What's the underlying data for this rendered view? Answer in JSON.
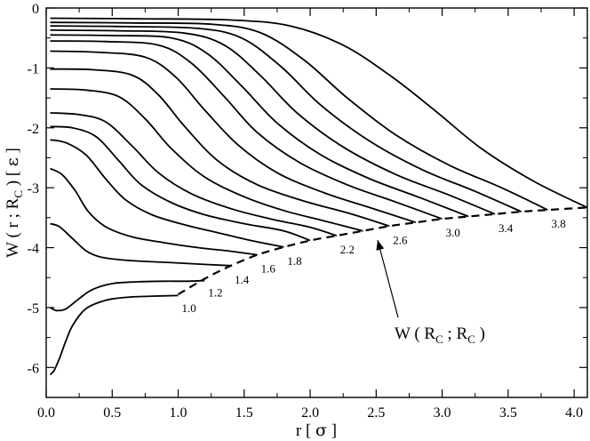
{
  "chart_data": {
    "type": "line",
    "xlabel": {
      "prefix": "r [ ",
      "symbol": "σ",
      "suffix": " ]"
    },
    "ylabel": {
      "p1": "W ( r ; R",
      "sub": "C",
      "p2": " ) [ ",
      "symbol": "ε",
      "p3": " ]"
    },
    "xlim": [
      0.0,
      4.1
    ],
    "ylim": [
      -6.5,
      0.0
    ],
    "xticks": [
      "0.0",
      "0.5",
      "1.0",
      "1.5",
      "2.0",
      "2.5",
      "3.0",
      "3.5",
      "4.0"
    ],
    "yticks": [
      "0",
      "-1",
      "-2",
      "-3",
      "-4",
      "-5",
      "-6"
    ],
    "grid": false,
    "curve_labels": [
      "1.0",
      "1.2",
      "1.4",
      "1.6",
      "1.8",
      "2.2",
      "2.6",
      "3.0",
      "3.4",
      "3.8"
    ],
    "envelope_label": {
      "p1": "W ( R",
      "sub1": "C",
      "p2": " ; R",
      "sub2": "C",
      "p3": " )"
    },
    "envelope": {
      "name": "W(R_C;R_C)",
      "style": "dashed",
      "points": [
        [
          1.0,
          -4.78
        ],
        [
          1.2,
          -4.52
        ],
        [
          1.4,
          -4.3
        ],
        [
          1.6,
          -4.12
        ],
        [
          1.8,
          -3.99
        ],
        [
          2.0,
          -3.88
        ],
        [
          2.2,
          -3.8
        ],
        [
          2.4,
          -3.72
        ],
        [
          2.6,
          -3.64
        ],
        [
          2.8,
          -3.58
        ],
        [
          3.0,
          -3.52
        ],
        [
          3.2,
          -3.48
        ],
        [
          3.4,
          -3.44
        ],
        [
          3.6,
          -3.4
        ],
        [
          3.8,
          -3.37
        ],
        [
          4.1,
          -3.33
        ]
      ]
    },
    "series": [
      {
        "points": [
          [
            0.03,
            -6.12
          ],
          [
            0.06,
            -6.05
          ],
          [
            0.1,
            -5.85
          ],
          [
            0.15,
            -5.55
          ],
          [
            0.2,
            -5.3
          ],
          [
            0.3,
            -5.02
          ],
          [
            0.45,
            -4.88
          ],
          [
            0.6,
            -4.83
          ],
          [
            0.8,
            -4.81
          ],
          [
            1.0,
            -4.8
          ]
        ]
      },
      {
        "points": [
          [
            0.03,
            -5.0
          ],
          [
            0.08,
            -5.05
          ],
          [
            0.15,
            -5.02
          ],
          [
            0.25,
            -4.85
          ],
          [
            0.35,
            -4.7
          ],
          [
            0.5,
            -4.6
          ],
          [
            0.7,
            -4.57
          ],
          [
            0.9,
            -4.56
          ],
          [
            1.05,
            -4.56
          ],
          [
            1.2,
            -4.55
          ]
        ]
      },
      {
        "points": [
          [
            0.03,
            -3.6
          ],
          [
            0.1,
            -3.65
          ],
          [
            0.2,
            -3.85
          ],
          [
            0.3,
            -4.05
          ],
          [
            0.4,
            -4.15
          ],
          [
            0.55,
            -4.2
          ],
          [
            0.75,
            -4.23
          ],
          [
            0.95,
            -4.25
          ],
          [
            1.2,
            -4.28
          ],
          [
            1.4,
            -4.3
          ]
        ]
      },
      {
        "points": [
          [
            0.03,
            -2.68
          ],
          [
            0.12,
            -2.78
          ],
          [
            0.22,
            -3.05
          ],
          [
            0.32,
            -3.4
          ],
          [
            0.45,
            -3.65
          ],
          [
            0.65,
            -3.82
          ],
          [
            0.9,
            -3.92
          ],
          [
            1.15,
            -4.0
          ],
          [
            1.4,
            -4.06
          ],
          [
            1.6,
            -4.12
          ]
        ]
      },
      {
        "points": [
          [
            0.03,
            -2.2
          ],
          [
            0.15,
            -2.25
          ],
          [
            0.3,
            -2.45
          ],
          [
            0.45,
            -2.85
          ],
          [
            0.6,
            -3.2
          ],
          [
            0.8,
            -3.45
          ],
          [
            1.05,
            -3.62
          ],
          [
            1.3,
            -3.75
          ],
          [
            1.55,
            -3.88
          ],
          [
            1.8,
            -3.99
          ]
        ]
      },
      {
        "points": [
          [
            0.03,
            -1.98
          ],
          [
            0.2,
            -2.0
          ],
          [
            0.38,
            -2.15
          ],
          [
            0.55,
            -2.55
          ],
          [
            0.72,
            -2.95
          ],
          [
            0.95,
            -3.25
          ],
          [
            1.2,
            -3.45
          ],
          [
            1.5,
            -3.6
          ],
          [
            1.8,
            -3.72
          ],
          [
            2.0,
            -3.88
          ]
        ]
      },
      {
        "points": [
          [
            0.03,
            -1.75
          ],
          [
            0.25,
            -1.78
          ],
          [
            0.45,
            -1.9
          ],
          [
            0.65,
            -2.3
          ],
          [
            0.85,
            -2.75
          ],
          [
            1.1,
            -3.1
          ],
          [
            1.4,
            -3.35
          ],
          [
            1.7,
            -3.52
          ],
          [
            2.0,
            -3.66
          ],
          [
            2.2,
            -3.8
          ]
        ]
      },
      {
        "points": [
          [
            0.03,
            -1.35
          ],
          [
            0.3,
            -1.37
          ],
          [
            0.55,
            -1.48
          ],
          [
            0.75,
            -1.85
          ],
          [
            0.95,
            -2.35
          ],
          [
            1.2,
            -2.82
          ],
          [
            1.5,
            -3.15
          ],
          [
            1.8,
            -3.38
          ],
          [
            2.1,
            -3.55
          ],
          [
            2.4,
            -3.72
          ]
        ]
      },
      {
        "points": [
          [
            0.03,
            -1.02
          ],
          [
            0.35,
            -1.03
          ],
          [
            0.65,
            -1.12
          ],
          [
            0.85,
            -1.45
          ],
          [
            1.05,
            -1.98
          ],
          [
            1.3,
            -2.55
          ],
          [
            1.6,
            -2.95
          ],
          [
            1.95,
            -3.22
          ],
          [
            2.3,
            -3.43
          ],
          [
            2.6,
            -3.64
          ]
        ]
      },
      {
        "points": [
          [
            0.03,
            -0.72
          ],
          [
            0.4,
            -0.74
          ],
          [
            0.75,
            -0.82
          ],
          [
            0.98,
            -1.15
          ],
          [
            1.2,
            -1.7
          ],
          [
            1.45,
            -2.28
          ],
          [
            1.75,
            -2.75
          ],
          [
            2.1,
            -3.08
          ],
          [
            2.45,
            -3.33
          ],
          [
            2.8,
            -3.58
          ]
        ]
      },
      {
        "points": [
          [
            0.03,
            -0.55
          ],
          [
            0.45,
            -0.56
          ],
          [
            0.85,
            -0.62
          ],
          [
            1.1,
            -0.92
          ],
          [
            1.35,
            -1.48
          ],
          [
            1.6,
            -2.08
          ],
          [
            1.92,
            -2.58
          ],
          [
            2.28,
            -2.95
          ],
          [
            2.65,
            -3.24
          ],
          [
            3.0,
            -3.52
          ]
        ]
      },
      {
        "points": [
          [
            0.03,
            -0.45
          ],
          [
            0.5,
            -0.46
          ],
          [
            0.95,
            -0.5
          ],
          [
            1.22,
            -0.76
          ],
          [
            1.48,
            -1.3
          ],
          [
            1.75,
            -1.92
          ],
          [
            2.08,
            -2.45
          ],
          [
            2.45,
            -2.85
          ],
          [
            2.85,
            -3.18
          ],
          [
            3.2,
            -3.48
          ]
        ]
      },
      {
        "points": [
          [
            0.03,
            -0.37
          ],
          [
            0.55,
            -0.38
          ],
          [
            1.05,
            -0.42
          ],
          [
            1.35,
            -0.62
          ],
          [
            1.62,
            -1.12
          ],
          [
            1.9,
            -1.75
          ],
          [
            2.25,
            -2.32
          ],
          [
            2.65,
            -2.78
          ],
          [
            3.05,
            -3.12
          ],
          [
            3.4,
            -3.44
          ]
        ]
      },
      {
        "points": [
          [
            0.03,
            -0.3
          ],
          [
            0.6,
            -0.31
          ],
          [
            1.15,
            -0.34
          ],
          [
            1.48,
            -0.5
          ],
          [
            1.78,
            -0.98
          ],
          [
            2.08,
            -1.62
          ],
          [
            2.45,
            -2.22
          ],
          [
            2.85,
            -2.7
          ],
          [
            3.25,
            -3.06
          ],
          [
            3.6,
            -3.4
          ]
        ]
      },
      {
        "points": [
          [
            0.03,
            -0.24
          ],
          [
            0.65,
            -0.25
          ],
          [
            1.25,
            -0.27
          ],
          [
            1.62,
            -0.41
          ],
          [
            1.95,
            -0.86
          ],
          [
            2.28,
            -1.5
          ],
          [
            2.65,
            -2.12
          ],
          [
            3.05,
            -2.62
          ],
          [
            3.45,
            -3.0
          ],
          [
            3.8,
            -3.37
          ]
        ]
      },
      {
        "points": [
          [
            0.03,
            -0.17
          ],
          [
            0.7,
            -0.18
          ],
          [
            1.4,
            -0.2
          ],
          [
            1.85,
            -0.3
          ],
          [
            2.25,
            -0.62
          ],
          [
            2.62,
            -1.15
          ],
          [
            2.95,
            -1.72
          ],
          [
            3.3,
            -2.35
          ],
          [
            3.7,
            -2.9
          ],
          [
            4.1,
            -3.33
          ]
        ]
      }
    ]
  }
}
